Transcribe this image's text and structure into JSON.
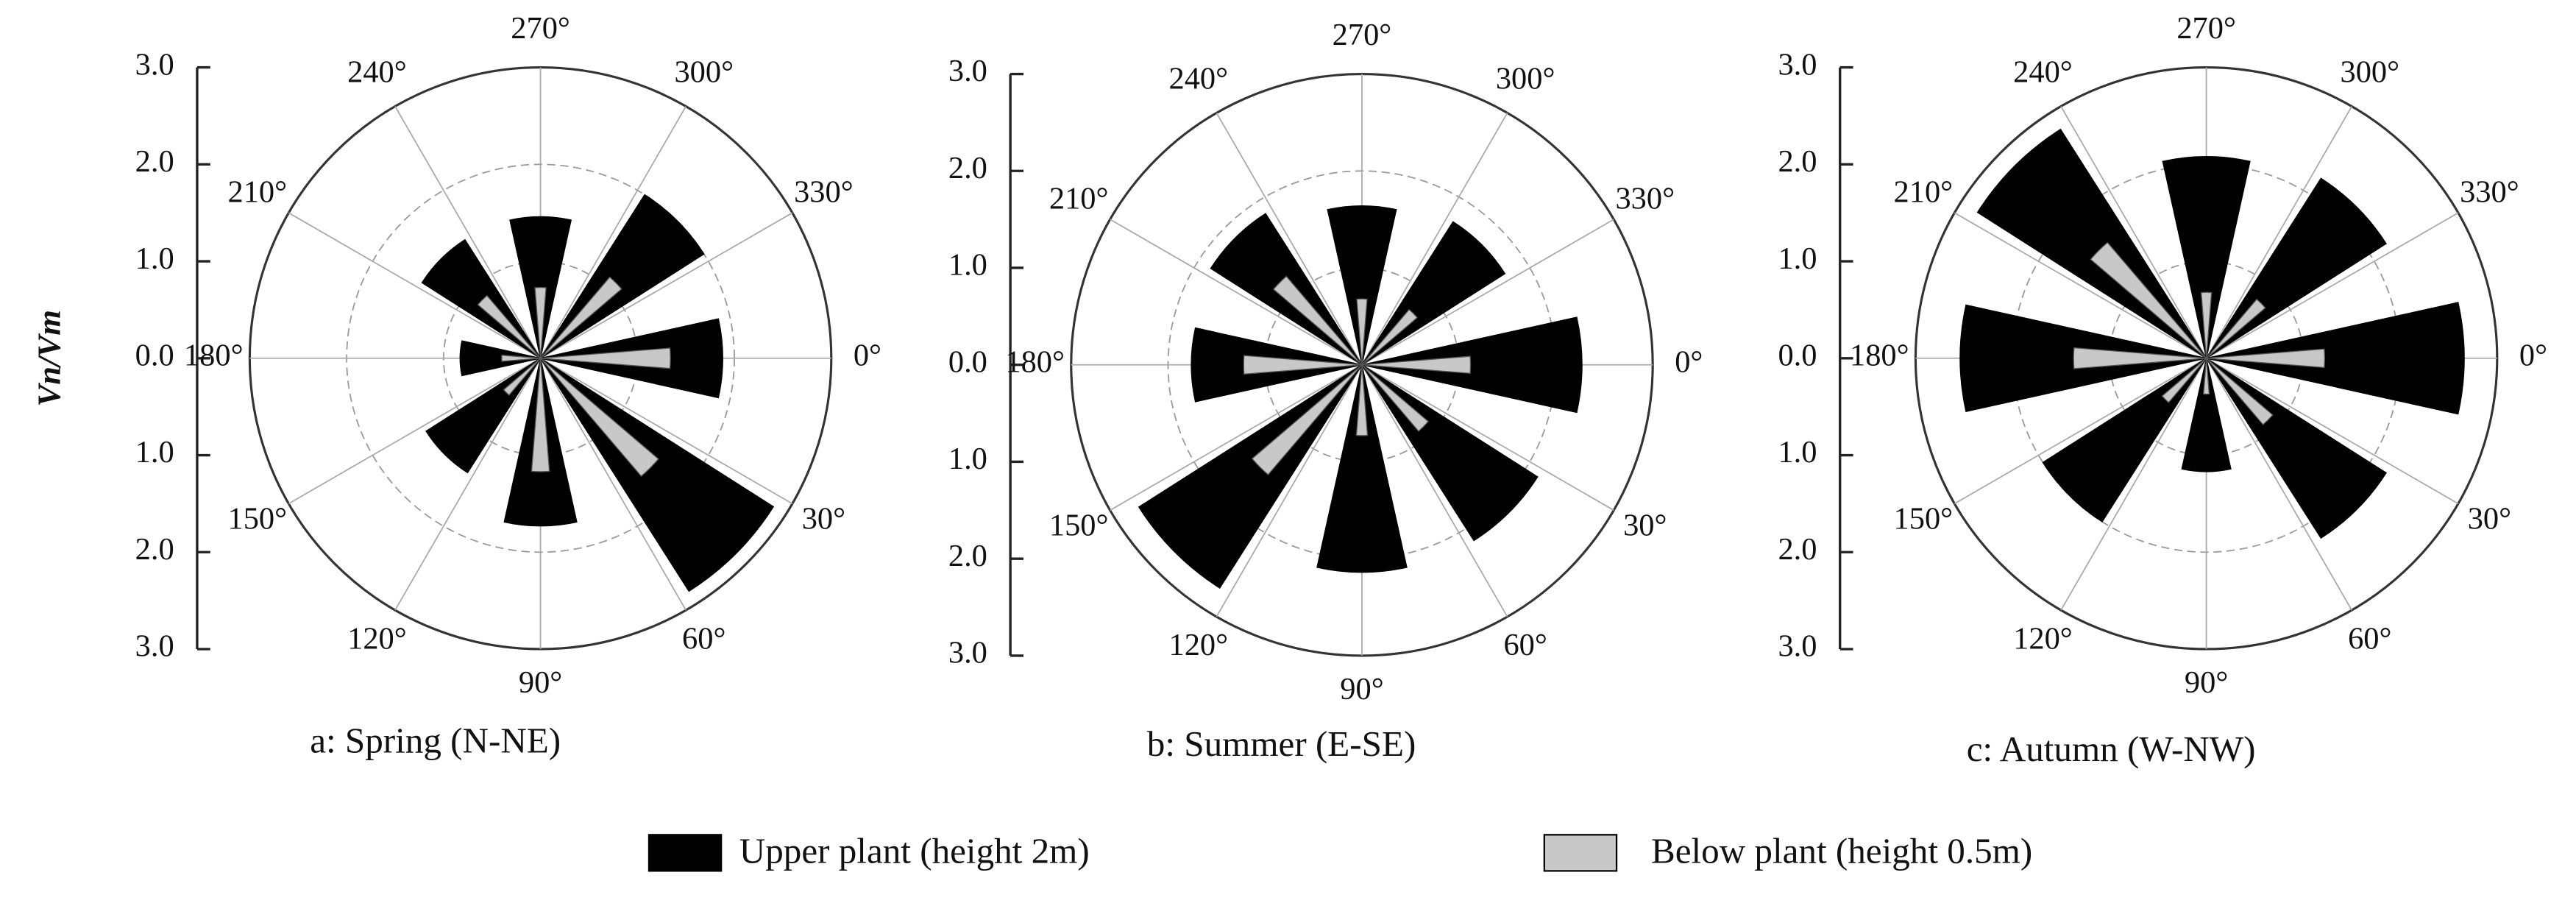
{
  "chart_data": [
    {
      "type": "polar-bar",
      "caption": "a: Spring (N-NE)",
      "y_label": "Vn/Vm",
      "ylim": [
        -3,
        3
      ],
      "yticks": [
        {
          "value": 3,
          "label": "3.0"
        },
        {
          "value": 2,
          "label": "2.0"
        },
        {
          "value": 1,
          "label": "1.0"
        },
        {
          "value": 0,
          "label": "0.0"
        },
        {
          "value": -1,
          "label": "1.0"
        },
        {
          "value": -2,
          "label": "2.0"
        },
        {
          "value": -3,
          "label": "3.0"
        }
      ],
      "angle_ticks": [
        {
          "value": 0,
          "label": "0°"
        },
        {
          "value": 30,
          "label": "30°"
        },
        {
          "value": 60,
          "label": "60°"
        },
        {
          "value": 90,
          "label": "90°"
        },
        {
          "value": 120,
          "label": "120°"
        },
        {
          "value": 150,
          "label": "150°"
        },
        {
          "value": 180,
          "label": "180°"
        },
        {
          "value": 210,
          "label": "210°"
        },
        {
          "value": 240,
          "label": "240°"
        },
        {
          "value": 270,
          "label": "270°"
        },
        {
          "value": 300,
          "label": "300°"
        },
        {
          "value": 330,
          "label": "330°"
        }
      ],
      "directions": [
        0,
        45,
        90,
        135,
        180,
        225,
        270,
        315
      ],
      "series": [
        {
          "name": "Upper plant (height 2m)",
          "color": "#000000",
          "values": [
            1.88,
            2.85,
            1.73,
            1.4,
            0.83,
            1.45,
            1.46,
            2.0
          ]
        },
        {
          "name": "Below plant (height 0.5m)",
          "color": "#c8c8c8",
          "values": [
            1.34,
            1.6,
            1.17,
            0.5,
            0.4,
            0.85,
            0.73,
            1.1
          ]
        }
      ]
    },
    {
      "type": "polar-bar",
      "caption": "b: Summer (E-SE)",
      "ylim": [
        -3,
        3
      ],
      "yticks": [
        {
          "value": 3,
          "label": "3.0"
        },
        {
          "value": 2,
          "label": "2.0"
        },
        {
          "value": 1,
          "label": "1.0"
        },
        {
          "value": 0,
          "label": "0.0"
        },
        {
          "value": -1,
          "label": "1.0"
        },
        {
          "value": -2,
          "label": "2.0"
        },
        {
          "value": -3,
          "label": "3.0"
        }
      ],
      "angle_ticks": [
        {
          "value": 0,
          "label": "0°"
        },
        {
          "value": 30,
          "label": "30°"
        },
        {
          "value": 60,
          "label": "60°"
        },
        {
          "value": 90,
          "label": "90°"
        },
        {
          "value": 120,
          "label": "120°"
        },
        {
          "value": 150,
          "label": "150°"
        },
        {
          "value": 180,
          "label": "180°"
        },
        {
          "value": 210,
          "label": "210°"
        },
        {
          "value": 240,
          "label": "240°"
        },
        {
          "value": 270,
          "label": "270°"
        },
        {
          "value": 300,
          "label": "300°"
        },
        {
          "value": 330,
          "label": "330°"
        }
      ],
      "directions": [
        0,
        45,
        90,
        135,
        180,
        225,
        270,
        315
      ],
      "series": [
        {
          "color": "#000000",
          "values": [
            2.27,
            2.15,
            2.14,
            2.73,
            1.76,
            1.85,
            1.64,
            1.75
          ]
        },
        {
          "color": "#c8c8c8",
          "values": [
            1.12,
            0.9,
            0.73,
            1.49,
            1.22,
            1.2,
            0.68,
            0.75
          ]
        }
      ]
    },
    {
      "type": "polar-bar",
      "caption": "c: Autumn (W-NW)",
      "ylim": [
        -3,
        3
      ],
      "yticks": [
        {
          "value": 3,
          "label": "3.0"
        },
        {
          "value": 2,
          "label": "2.0"
        },
        {
          "value": 1,
          "label": "1.0"
        },
        {
          "value": 0,
          "label": "0.0"
        },
        {
          "value": -1,
          "label": "1.0"
        },
        {
          "value": -2,
          "label": "2.0"
        },
        {
          "value": -3,
          "label": "3.0"
        }
      ],
      "angle_ticks": [
        {
          "value": 0,
          "label": "0°"
        },
        {
          "value": 30,
          "label": "30°"
        },
        {
          "value": 60,
          "label": "60°"
        },
        {
          "value": 90,
          "label": "90°"
        },
        {
          "value": 120,
          "label": "120°"
        },
        {
          "value": 150,
          "label": "150°"
        },
        {
          "value": 180,
          "label": "180°"
        },
        {
          "value": 210,
          "label": "210°"
        },
        {
          "value": 240,
          "label": "240°"
        },
        {
          "value": 270,
          "label": "270°"
        },
        {
          "value": 300,
          "label": "300°"
        },
        {
          "value": 330,
          "label": "330°"
        }
      ],
      "directions": [
        0,
        45,
        90,
        135,
        180,
        225,
        270,
        315
      ],
      "series": [
        {
          "color": "#000000",
          "values": [
            2.66,
            2.2,
            1.17,
            2.0,
            2.54,
            2.8,
            2.08,
            2.2
          ]
        },
        {
          "color": "#c8c8c8",
          "values": [
            1.22,
            0.9,
            0.37,
            0.6,
            1.37,
            1.57,
            0.68,
            0.8
          ]
        }
      ]
    }
  ]
}
